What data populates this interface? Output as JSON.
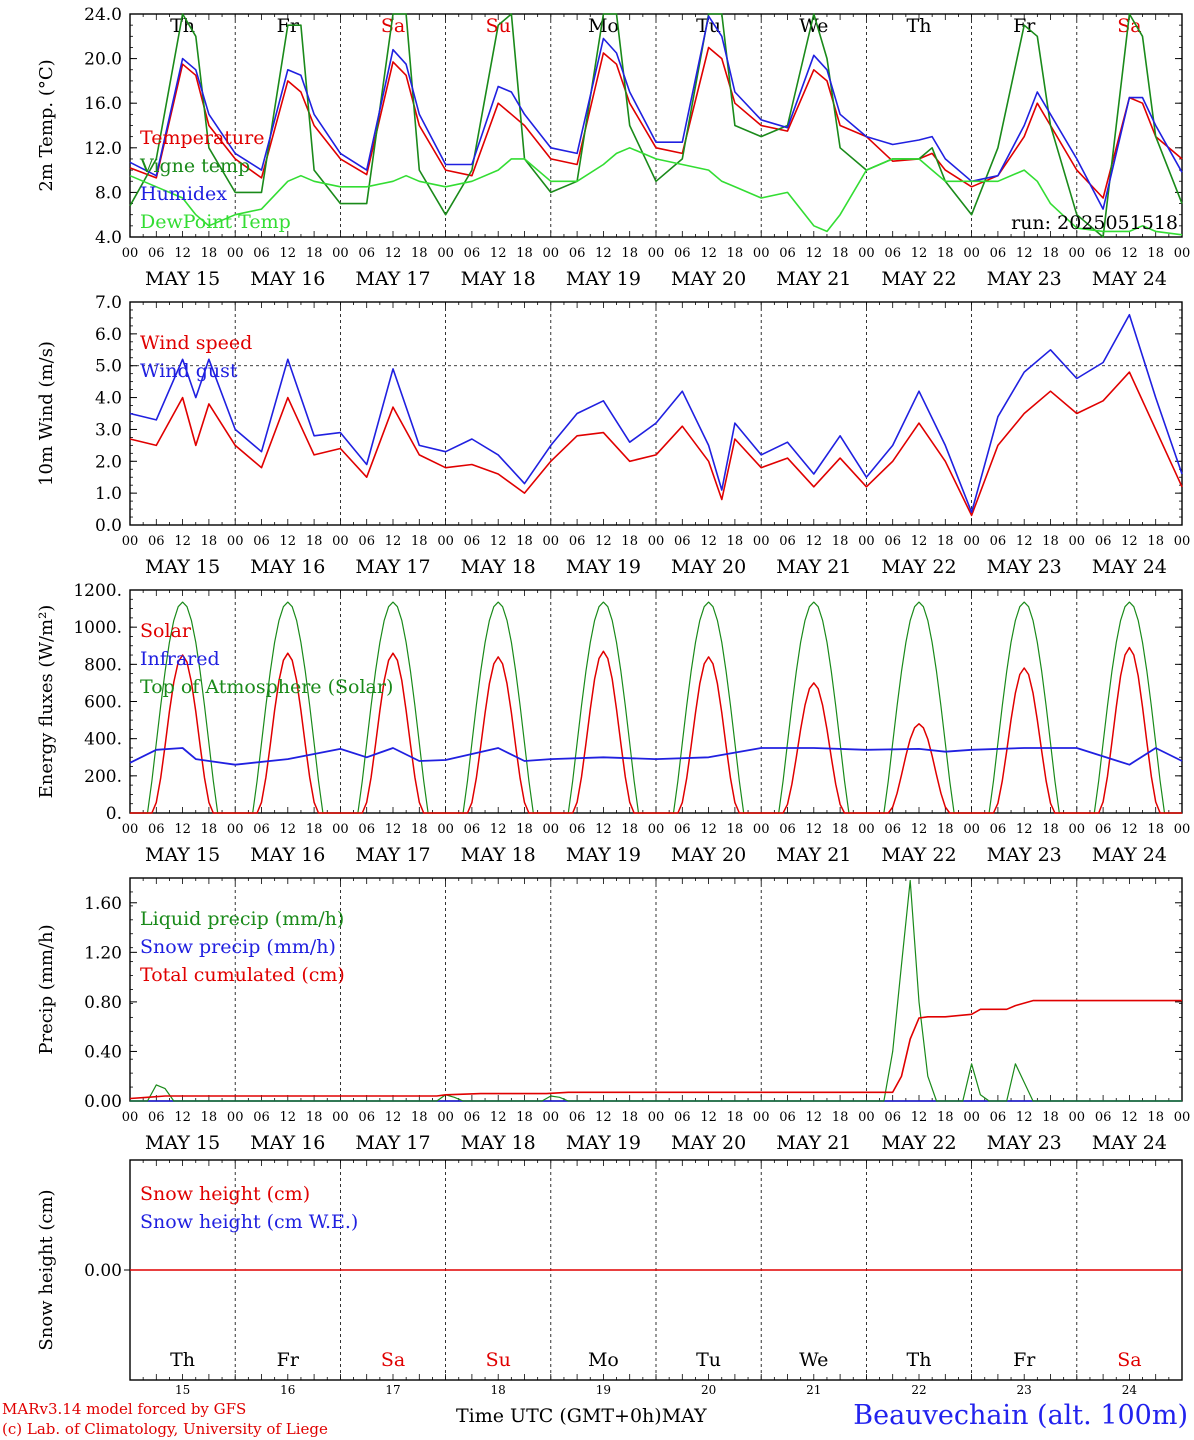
{
  "footer": {
    "model": "MARv3.14 model forced by GFS",
    "copyright": "(c) Lab. of Climatology, University of Liege",
    "time_axis": "Time UTC (GMT+0h)MAY",
    "station": "Beauvechain (alt. 100m)"
  },
  "colors": {
    "red": "#e00000",
    "blue": "#2020e0",
    "green": "#1a8a1a",
    "lightgreen": "#33dd33"
  },
  "chart_data": [
    {
      "id": "temperature",
      "type": "line",
      "ylabel": "2m Temp. (°C)",
      "ylim": [
        4,
        24
      ],
      "yticks": [
        "4.0",
        "8.0",
        "12.0",
        "16.0",
        "20.0",
        "24.0"
      ],
      "day_labels": [
        {
          "text": "Th",
          "color": "black"
        },
        {
          "text": "Fr",
          "color": "black"
        },
        {
          "text": "Sa",
          "color": "red"
        },
        {
          "text": "Su",
          "color": "red"
        },
        {
          "text": "Mo",
          "color": "black"
        },
        {
          "text": "Tu",
          "color": "black"
        },
        {
          "text": "We",
          "color": "black"
        },
        {
          "text": "Th",
          "color": "black"
        },
        {
          "text": "Fr",
          "color": "black"
        },
        {
          "text": "Sa",
          "color": "red"
        }
      ],
      "run_label": "run: 2025051518",
      "legend": [
        {
          "text": "Temperature",
          "color": "red"
        },
        {
          "text": "Vigne temp",
          "color": "green"
        },
        {
          "text": "Humidex",
          "color": "blue"
        },
        {
          "text": "DewPoint Temp",
          "color": "lightgreen"
        }
      ],
      "x_hours": [
        0,
        6,
        12,
        15,
        18,
        24,
        30,
        36,
        39,
        42,
        48,
        54,
        60,
        63,
        66,
        72,
        78,
        84,
        87,
        90,
        96,
        102,
        108,
        111,
        114,
        120,
        126,
        132,
        135,
        138,
        144,
        150,
        156,
        159,
        162,
        168,
        174,
        180,
        183,
        186,
        192,
        198,
        204,
        207,
        210,
        216,
        222,
        228,
        231,
        234,
        240
      ],
      "series": [
        {
          "name": "Temperature",
          "color": "red",
          "values": [
            10.2,
            9.3,
            19.5,
            18.5,
            14,
            11,
            9.3,
            18,
            17,
            14,
            11,
            9.6,
            19.7,
            18.5,
            14,
            10,
            9.5,
            16,
            15,
            14,
            11,
            10.5,
            20.5,
            19.5,
            16,
            12,
            11.5,
            21,
            20,
            16,
            14,
            13.5,
            19,
            18,
            14,
            13,
            10.8,
            11,
            11.5,
            10,
            8.5,
            9.5,
            13,
            16,
            14,
            10,
            7.5,
            16.5,
            16,
            13,
            11
          ]
        },
        {
          "name": "Vigne temp",
          "color": "green",
          "values": [
            6.8,
            11,
            24,
            22,
            12,
            8,
            8,
            23,
            23,
            10,
            7,
            7,
            24,
            24,
            10,
            6,
            10,
            23,
            24,
            11,
            8,
            9,
            24,
            24,
            14,
            9,
            11,
            24,
            24,
            14,
            13,
            14,
            24,
            20,
            12,
            10,
            11,
            11,
            12,
            9,
            6,
            12,
            23,
            22,
            14,
            6,
            4,
            24,
            22,
            13,
            7
          ]
        },
        {
          "name": "Humidex",
          "color": "blue",
          "values": [
            10.7,
            9.5,
            20,
            19,
            15,
            11.5,
            10,
            19,
            18.5,
            15,
            11.5,
            10,
            20.8,
            19.5,
            15,
            10.5,
            10.5,
            17.5,
            17,
            15,
            12,
            11.5,
            21.8,
            20.5,
            17,
            12.5,
            12.5,
            23.8,
            22,
            17,
            14.5,
            13.8,
            20.3,
            19,
            15,
            13,
            12.3,
            12.7,
            13,
            11,
            9,
            9.5,
            14,
            17,
            15,
            11,
            6.5,
            16.5,
            16.5,
            14,
            9.8
          ]
        },
        {
          "name": "DewPoint Temp",
          "color": "lightgreen",
          "values": [
            9.5,
            8.5,
            7.5,
            6,
            5,
            6,
            6.5,
            9,
            9.5,
            9,
            8.5,
            8.5,
            9,
            9.5,
            9,
            8.5,
            9,
            10,
            11,
            11,
            9,
            9,
            10.5,
            11.5,
            12,
            11,
            10.5,
            10,
            9,
            8.5,
            7.5,
            8,
            5,
            4.5,
            6,
            10,
            11,
            11,
            10,
            9,
            9,
            9,
            10,
            9,
            7,
            4.8,
            4.5,
            4.5,
            5,
            4.5,
            4.2
          ]
        }
      ]
    },
    {
      "id": "wind",
      "type": "line",
      "ylabel": "10m Wind (m/s)",
      "ylim": [
        0,
        7
      ],
      "yticks": [
        "0.0",
        "1.0",
        "2.0",
        "3.0",
        "4.0",
        "5.0",
        "6.0",
        "7.0"
      ],
      "legend": [
        {
          "text": "Wind speed",
          "color": "red"
        },
        {
          "text": "Wind gust",
          "color": "blue"
        }
      ],
      "x_hours": [
        0,
        6,
        12,
        15,
        18,
        24,
        30,
        36,
        42,
        48,
        54,
        60,
        66,
        72,
        78,
        84,
        90,
        96,
        102,
        108,
        114,
        120,
        126,
        132,
        135,
        138,
        144,
        150,
        156,
        162,
        168,
        174,
        180,
        186,
        192,
        198,
        204,
        210,
        216,
        222,
        228,
        234,
        240
      ],
      "series": [
        {
          "name": "Wind speed",
          "color": "red",
          "values": [
            2.7,
            2.5,
            4,
            2.5,
            3.8,
            2.5,
            1.8,
            4,
            2.2,
            2.4,
            1.5,
            3.7,
            2.2,
            1.8,
            1.9,
            1.6,
            1.0,
            2.0,
            2.8,
            2.9,
            2.0,
            2.2,
            3.1,
            2.0,
            0.8,
            2.7,
            1.8,
            2.1,
            1.2,
            2.1,
            1.2,
            2.0,
            3.2,
            2.0,
            0.3,
            2.5,
            3.5,
            4.2,
            3.5,
            3.9,
            4.8,
            3.0,
            1.2
          ]
        },
        {
          "name": "Wind gust",
          "color": "blue",
          "values": [
            3.5,
            3.3,
            5.2,
            4.0,
            5.2,
            3.0,
            2.3,
            5.2,
            2.8,
            2.9,
            1.9,
            4.9,
            2.5,
            2.3,
            2.7,
            2.2,
            1.3,
            2.5,
            3.5,
            3.9,
            2.6,
            3.2,
            4.2,
            2.5,
            1.1,
            3.2,
            2.2,
            2.6,
            1.6,
            2.8,
            1.5,
            2.5,
            4.2,
            2.5,
            0.4,
            3.4,
            4.8,
            5.5,
            4.6,
            5.1,
            6.6,
            4.0,
            1.6
          ]
        }
      ]
    },
    {
      "id": "energy",
      "type": "line",
      "ylabel": "Energy fluxes (W/m²)",
      "ylim": [
        0,
        1200
      ],
      "yticks": [
        "0.",
        "200.",
        "400.",
        "600.",
        "800.",
        "1000.",
        "1200."
      ],
      "legend": [
        {
          "text": "Solar",
          "color": "red"
        },
        {
          "text": "Infrared",
          "color": "blue"
        },
        {
          "text": "Top of Atmosphere (Solar)",
          "color": "green"
        }
      ],
      "toa_peak": 1135,
      "solar_peaks": [
        850,
        860,
        860,
        840,
        870,
        840,
        700,
        480,
        780,
        890
      ],
      "infrared": {
        "x_hours": [
          0,
          6,
          12,
          15,
          24,
          36,
          48,
          54,
          60,
          66,
          72,
          84,
          90,
          96,
          108,
          120,
          132,
          144,
          156,
          168,
          180,
          186,
          192,
          204,
          216,
          228,
          234,
          240
        ],
        "values": [
          270,
          340,
          350,
          290,
          260,
          290,
          345,
          300,
          350,
          280,
          285,
          350,
          280,
          290,
          300,
          290,
          300,
          350,
          350,
          340,
          345,
          330,
          340,
          350,
          350,
          260,
          350,
          280
        ]
      }
    },
    {
      "id": "precip",
      "type": "line",
      "ylabel": "Precip (mm/h)",
      "ylim": [
        0,
        1.8
      ],
      "yticks": [
        "0.00",
        "0.40",
        "0.80",
        "1.20",
        "1.60"
      ],
      "legend": [
        {
          "text": "Liquid precip (mm/h)",
          "color": "green"
        },
        {
          "text": "Snow precip (mm/h)",
          "color": "blue"
        },
        {
          "text": "Total cumulated (cm)",
          "color": "red"
        }
      ],
      "liquid": {
        "x_hours": [
          0,
          4,
          6,
          8,
          10,
          12,
          70,
          72,
          74,
          76,
          78,
          94,
          96,
          98,
          100,
          172,
          174,
          176,
          178,
          180,
          182,
          184,
          186,
          188,
          190,
          192,
          194,
          196,
          198,
          200,
          202,
          204,
          206,
          208,
          210,
          240
        ],
        "values": [
          0,
          0,
          0.13,
          0.1,
          0,
          0,
          0,
          0.05,
          0.03,
          0,
          0,
          0,
          0.04,
          0.03,
          0,
          0,
          0.4,
          1.1,
          1.78,
          0.8,
          0.2,
          0,
          0,
          0,
          0,
          0.3,
          0.05,
          0,
          0,
          0,
          0.3,
          0.15,
          0,
          0,
          0,
          0
        ]
      },
      "snow": {
        "x_hours": [
          0,
          240
        ],
        "values": [
          0,
          0
        ]
      },
      "cumulated": {
        "x_hours": [
          0,
          4,
          8,
          10,
          70,
          72,
          80,
          95,
          100,
          174,
          176,
          178,
          180,
          182,
          186,
          192,
          194,
          200,
          202,
          206,
          240
        ],
        "values": [
          0.02,
          0.03,
          0.04,
          0.04,
          0.04,
          0.05,
          0.06,
          0.06,
          0.07,
          0.07,
          0.2,
          0.5,
          0.67,
          0.68,
          0.68,
          0.7,
          0.74,
          0.74,
          0.77,
          0.81,
          0.81
        ]
      }
    },
    {
      "id": "snow",
      "type": "line",
      "ylabel": "Snow height (cm)",
      "ylim": [
        -1,
        1
      ],
      "yticks": [
        "0.00"
      ],
      "legend": [
        {
          "text": "Snow height (cm)",
          "color": "red"
        },
        {
          "text": "Snow height (cm W.E.)",
          "color": "blue"
        }
      ],
      "series": [
        {
          "name": "Snow height (cm)",
          "color": "red",
          "values": [
            0,
            0
          ]
        }
      ],
      "day_labels": [
        {
          "text": "Th",
          "color": "black"
        },
        {
          "text": "Fr",
          "color": "black"
        },
        {
          "text": "Sa",
          "color": "red"
        },
        {
          "text": "Su",
          "color": "red"
        },
        {
          "text": "Mo",
          "color": "black"
        },
        {
          "text": "Tu",
          "color": "black"
        },
        {
          "text": "We",
          "color": "black"
        },
        {
          "text": "Th",
          "color": "black"
        },
        {
          "text": "Fr",
          "color": "black"
        },
        {
          "text": "Sa",
          "color": "red"
        }
      ],
      "day_numbers": [
        "15",
        "16",
        "17",
        "18",
        "19",
        "20",
        "21",
        "22",
        "23",
        "24"
      ]
    }
  ],
  "x_axis": {
    "hour_ticks": [
      "00",
      "06",
      "12",
      "18"
    ],
    "end_tick": "00",
    "dates": [
      "MAY 15",
      "MAY 16",
      "MAY 17",
      "MAY 18",
      "MAY 19",
      "MAY 20",
      "MAY 21",
      "MAY 22",
      "MAY 23",
      "MAY 24"
    ]
  }
}
